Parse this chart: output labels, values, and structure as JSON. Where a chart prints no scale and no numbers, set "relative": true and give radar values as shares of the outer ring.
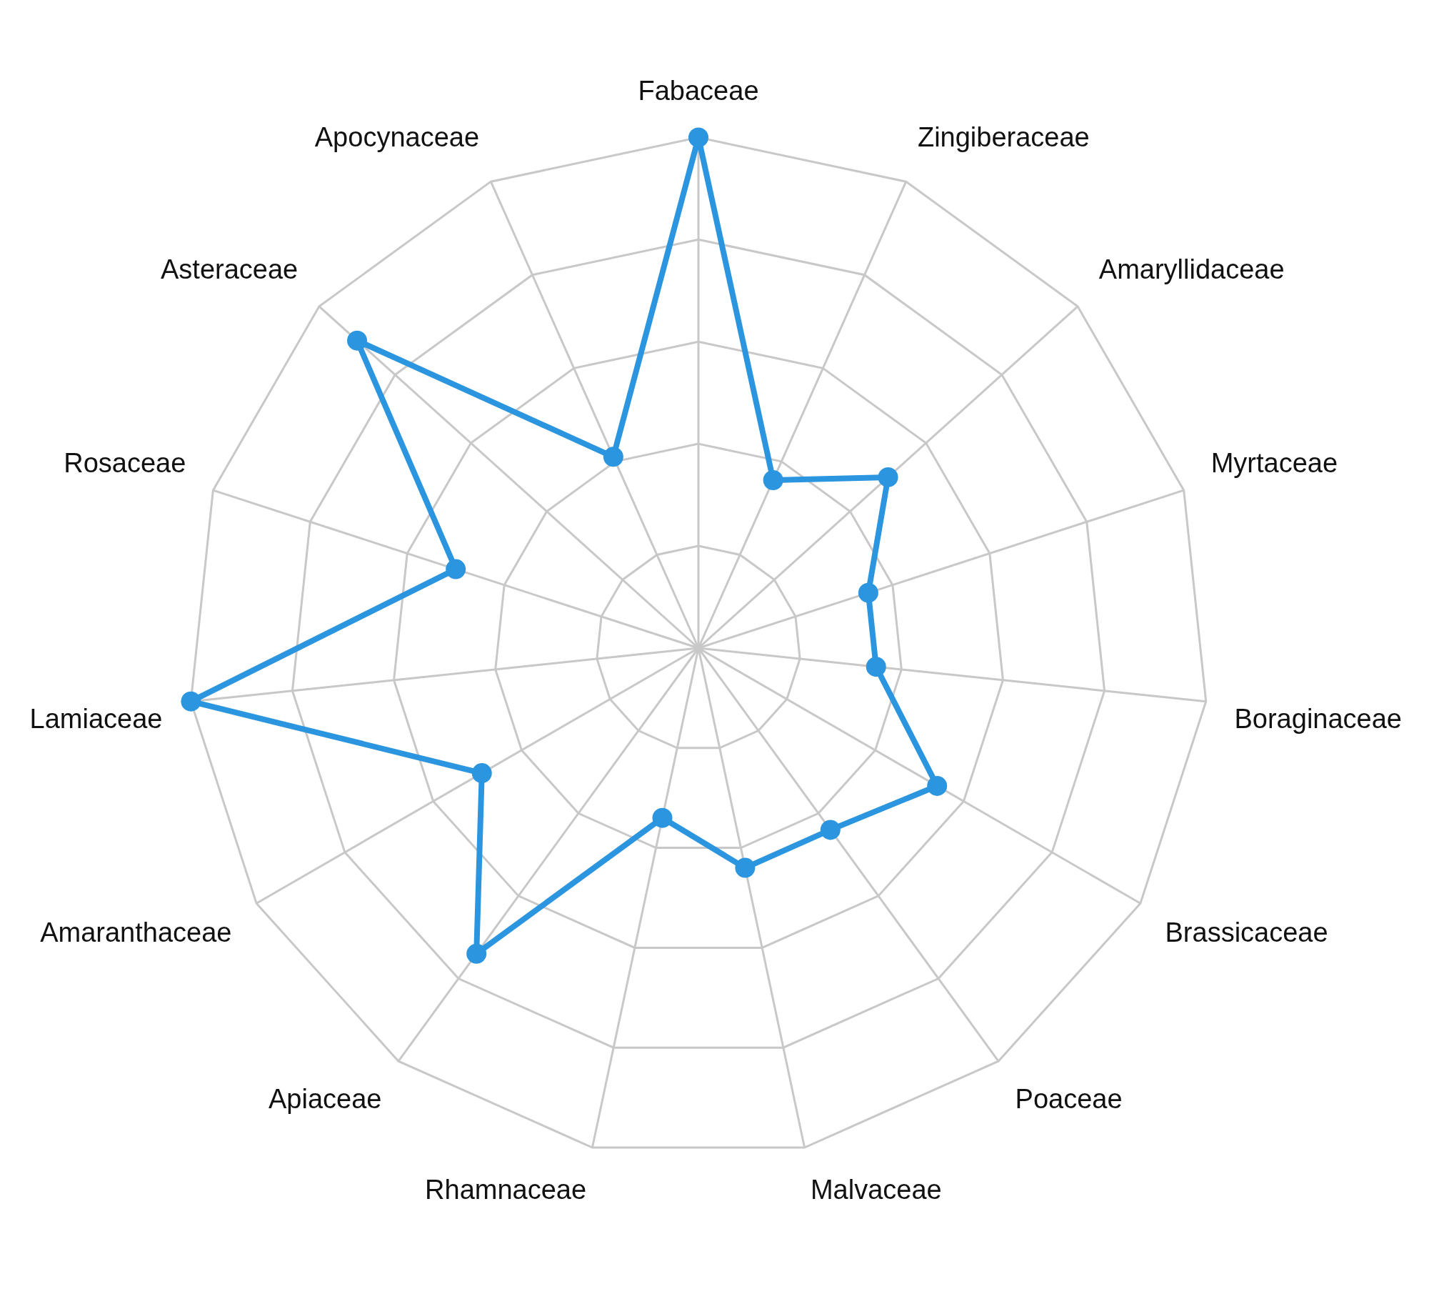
{
  "chart_data": {
    "type": "radar",
    "relative": true,
    "grid": true,
    "marker": "circle",
    "categories": [
      "Fabaceae",
      "Zingiberaceae",
      "Amaryllidaceae",
      "Myrtaceae",
      "Boraginaceae",
      "Brassicaceae",
      "Poaceae",
      "Malvaceae",
      "Rhamnaceae",
      "Apiaceae",
      "Amaranthaceae",
      "Lamiaceae",
      "Rosaceae",
      "Asteraceae",
      "Apocynaceae"
    ],
    "series": [
      {
        "color": "#2b96df",
        "values": [
          1.0,
          0.36,
          0.5,
          0.35,
          0.35,
          0.54,
          0.44,
          0.44,
          0.34,
          0.74,
          0.49,
          1.0,
          0.5,
          0.9,
          0.41
        ]
      }
    ]
  }
}
